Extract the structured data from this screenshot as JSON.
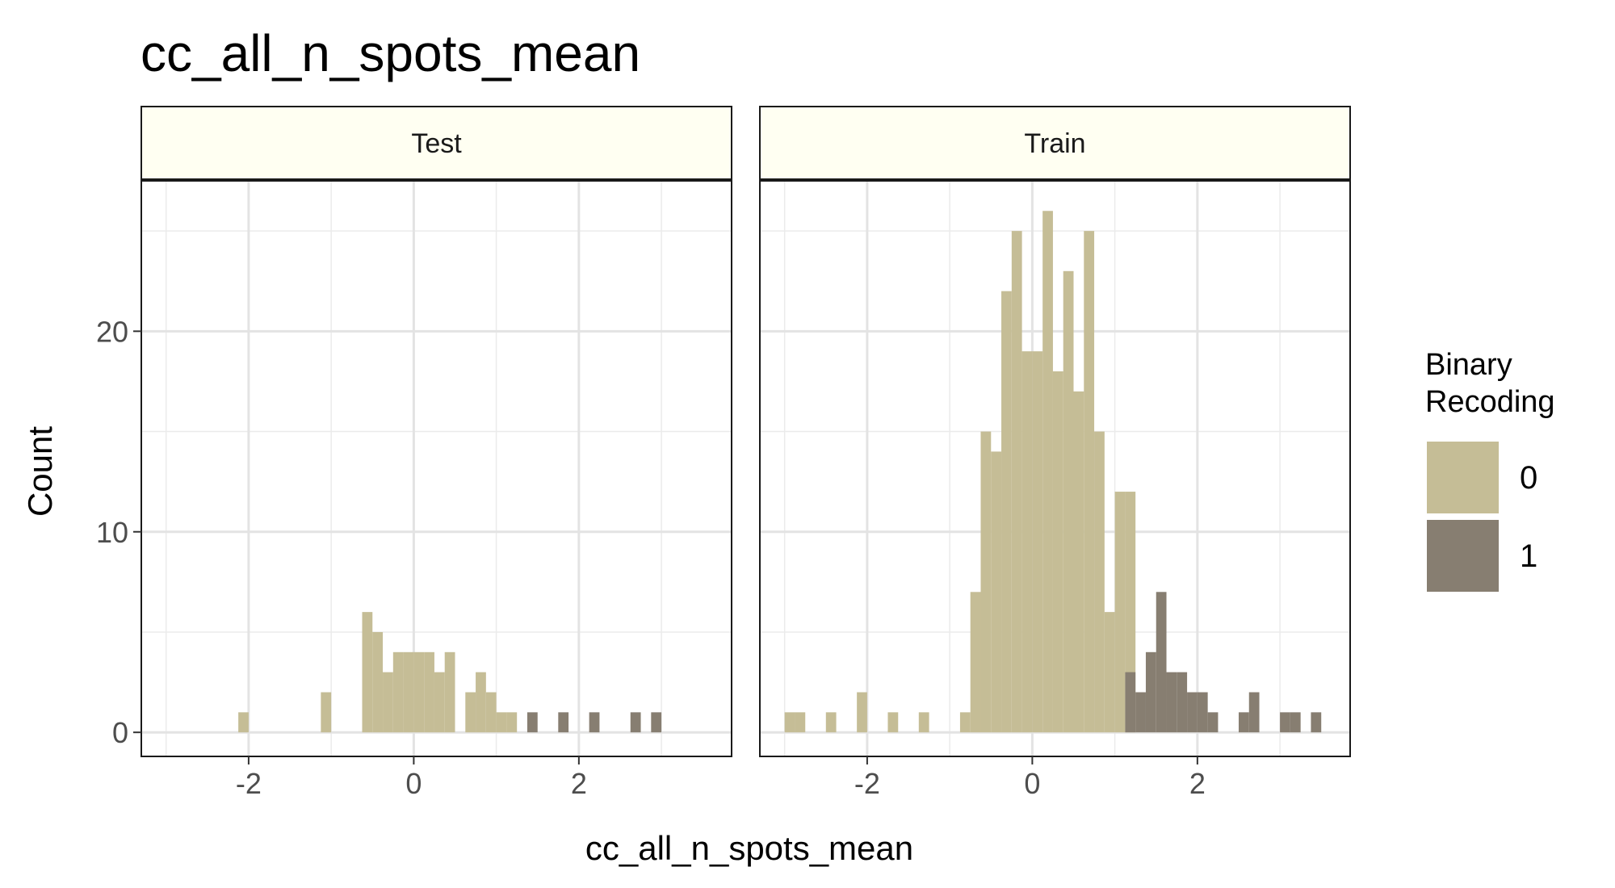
{
  "chart_data": {
    "type": "histogram",
    "title": "cc_all_n_spots_mean",
    "xlabel": "cc_all_n_spots_mean",
    "ylabel": "Count",
    "xlim": [
      -3.3,
      3.85
    ],
    "ylim": [
      -1.2,
      27.5
    ],
    "x_ticks": [
      -2,
      0,
      2
    ],
    "x_tick_labels": [
      "-2",
      "0",
      "2"
    ],
    "y_ticks": [
      0,
      10,
      20
    ],
    "y_tick_labels": [
      "0",
      "10",
      "20"
    ],
    "x_minor_ticks": [
      -3,
      -1,
      1,
      3
    ],
    "y_minor_ticks": [
      5,
      15,
      25
    ],
    "grid": true,
    "bin_width": 0.125,
    "legend": {
      "title_lines": [
        "Binary",
        "Recoding"
      ],
      "position": "right",
      "entries": [
        {
          "label": "0",
          "color": "#c5bd96"
        },
        {
          "label": "1",
          "color": "#877e71"
        }
      ]
    },
    "strip_fill": "#fffff2",
    "panels": [
      {
        "strip_label": "Test",
        "series": [
          {
            "name": "0",
            "color": "#c5bd96",
            "bins": [
              [
                -2.125,
                1
              ],
              [
                -1.125,
                2
              ],
              [
                -0.625,
                6
              ],
              [
                -0.5,
                5
              ],
              [
                -0.375,
                3
              ],
              [
                -0.25,
                4
              ],
              [
                -0.125,
                4
              ],
              [
                0,
                4
              ],
              [
                0.125,
                4
              ],
              [
                0.25,
                3
              ],
              [
                0.375,
                4
              ],
              [
                0.625,
                2
              ],
              [
                0.75,
                3
              ],
              [
                0.875,
                2
              ],
              [
                1.0,
                1
              ],
              [
                1.125,
                1
              ]
            ]
          },
          {
            "name": "1",
            "color": "#877e71",
            "bins": [
              [
                1.375,
                1
              ],
              [
                1.75,
                1
              ],
              [
                2.125,
                1
              ],
              [
                2.625,
                1
              ],
              [
                2.875,
                1
              ]
            ]
          }
        ]
      },
      {
        "strip_label": "Train",
        "series": [
          {
            "name": "0",
            "color": "#c5bd96",
            "bins": [
              [
                -3.0,
                1
              ],
              [
                -2.875,
                1
              ],
              [
                -2.5,
                1
              ],
              [
                -2.125,
                2
              ],
              [
                -1.75,
                1
              ],
              [
                -1.375,
                1
              ],
              [
                -0.875,
                1
              ],
              [
                -0.75,
                7
              ],
              [
                -0.625,
                15
              ],
              [
                -0.5,
                14
              ],
              [
                -0.375,
                22
              ],
              [
                -0.25,
                25
              ],
              [
                -0.125,
                19
              ],
              [
                0,
                19
              ],
              [
                0.125,
                26
              ],
              [
                0.25,
                18
              ],
              [
                0.375,
                23
              ],
              [
                0.5,
                17
              ],
              [
                0.625,
                25
              ],
              [
                0.75,
                15
              ],
              [
                0.875,
                6
              ],
              [
                1.0,
                12
              ],
              [
                1.125,
                12
              ]
            ]
          },
          {
            "name": "1",
            "color": "#877e71",
            "bins": [
              [
                1.125,
                3
              ],
              [
                1.25,
                2
              ],
              [
                1.375,
                4
              ],
              [
                1.5,
                7
              ],
              [
                1.625,
                3
              ],
              [
                1.75,
                3
              ],
              [
                1.875,
                2
              ],
              [
                2.0,
                2
              ],
              [
                2.125,
                1
              ],
              [
                2.5,
                1
              ],
              [
                2.625,
                2
              ],
              [
                3.0,
                1
              ],
              [
                3.125,
                1
              ],
              [
                3.375,
                1
              ]
            ]
          }
        ]
      }
    ]
  }
}
